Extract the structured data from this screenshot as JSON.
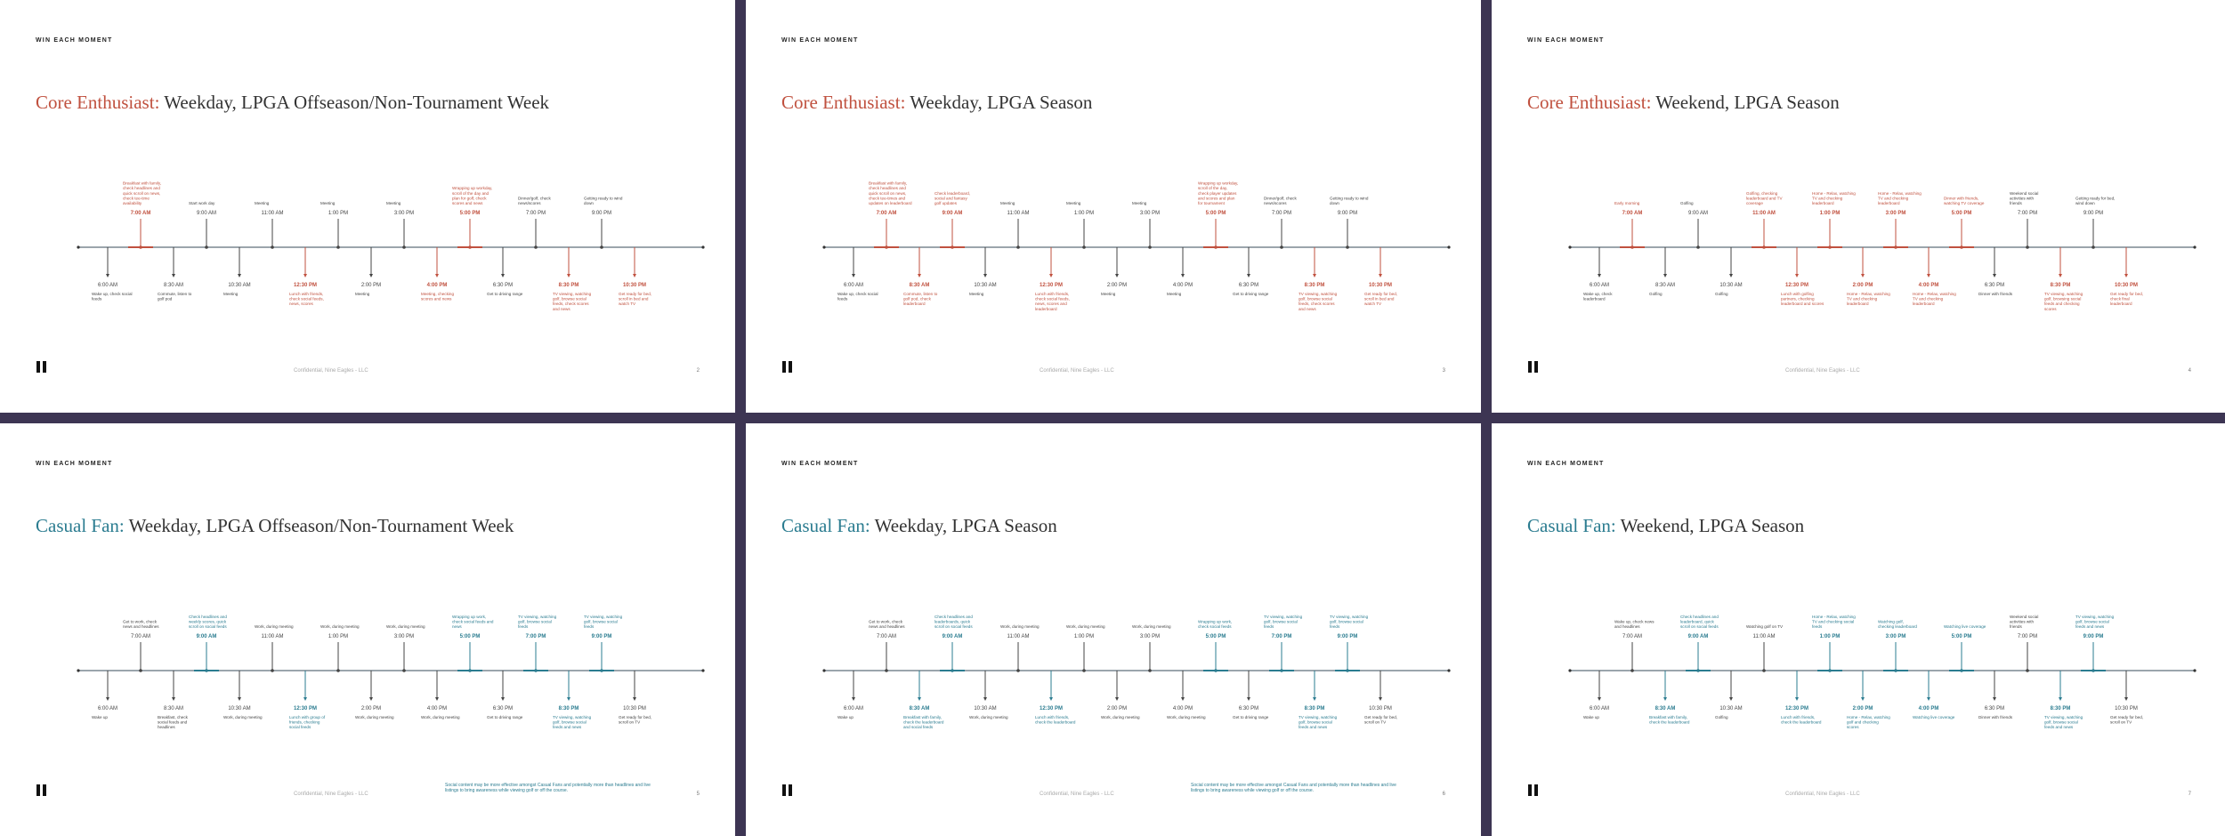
{
  "brand": "WIN EACH MOMENT",
  "footer_text": "Confidential, Nine Eagles - LLC",
  "colors": {
    "core": "#c0513f",
    "casual": "#2b7c90",
    "neutral": "#444444",
    "line": "#5f6f7a",
    "divider": "#3d3553"
  },
  "times_top": [
    "7:00 AM",
    "9:00 AM",
    "11:00 AM",
    "1:00 PM",
    "3:00 PM",
    "5:00 PM",
    "7:00 PM",
    "9:00 PM"
  ],
  "times_bottom": [
    "6:00 AM",
    "8:30 AM",
    "10:30 AM",
    "12:30 PM",
    "2:00 PM",
    "4:00 PM",
    "6:30 PM",
    "8:30 PM",
    "10:30 PM"
  ],
  "slides": [
    {
      "title_accent": "Core Enthusiast:",
      "title_rest": " Weekday, LPGA Offseason/Non-Tournament Week",
      "page": "2",
      "accent": "core",
      "top_hl": [
        0,
        5
      ],
      "bottom_hl": [
        3,
        5,
        7,
        8
      ],
      "top_notes": [
        "Breakfast with family, check headlines and quick scroll on news, check tee-time availability",
        "Start work day",
        "Meeting",
        "Meeting",
        "Meeting",
        "Wrapping up workday, scroll of the day and plan for golf, check scores and news",
        "Dinner/golf, check news/scores",
        "Getting ready to wind down"
      ],
      "bottom_notes": [
        "Wake up, check social feeds",
        "Commute, listen to golf pod",
        "Meeting",
        "Lunch with friends, check social feeds, news, scores",
        "Meeting",
        "Meeting, checking scores and news",
        "Get to driving range",
        "TV viewing, watching golf, browse social feeds, check scores and news",
        "Get ready for bed, scroll in bed and watch TV"
      ]
    },
    {
      "title_accent": "Core Enthusiast:",
      "title_rest": " Weekday, LPGA Season",
      "page": "3",
      "accent": "core",
      "top_hl": [
        0,
        1,
        5
      ],
      "bottom_hl": [
        1,
        3,
        7,
        8
      ],
      "top_notes": [
        "Breakfast with family, check headlines and quick scroll on news, check tee-times and updates on leaderboard",
        "Check leaderboard, social and fantasy golf updates",
        "Meeting",
        "Meeting",
        "Meeting",
        "Wrapping up workday, scroll of the day, check player updates and scores and plan for tournament",
        "Dinner/golf, check news/scores",
        "Getting ready to wind down"
      ],
      "bottom_notes": [
        "Wake up, check social feeds",
        "Commute, listen to golf pod, check leaderboard",
        "Meeting",
        "Lunch with friends, check social feeds, news, scores and leaderboard",
        "Meeting",
        "Meeting",
        "Get to driving range",
        "TV viewing, watching golf, browse social feeds, check scores and news",
        "Get ready for bed, scroll in bed and watch TV"
      ]
    },
    {
      "title_accent": "Core Enthusiast:",
      "title_rest": " Weekend, LPGA Season",
      "page": "4",
      "accent": "core",
      "top_hl": [
        0,
        2,
        3,
        4,
        5
      ],
      "bottom_hl": [
        3,
        4,
        5,
        7,
        8
      ],
      "top_notes": [
        "Early morning",
        "Golfing",
        "Golfing, checking leaderboard and TV coverage",
        "Home - Relax, watching TV and checking leaderboard",
        "Home - Relax, watching TV and checking leaderboard",
        "Dinner with friends, watching TV coverage",
        "Weekend social activities with friends",
        "Getting ready for bed, wind down"
      ],
      "bottom_notes": [
        "Wake up, check leaderboard",
        "Golfing",
        "Golfing",
        "Lunch with golfing partners, checking leaderboard and scores",
        "Home - Relax, watching TV and checking leaderboard",
        "Home - Relax, watching TV and checking leaderboard",
        "Dinner with friends",
        "TV viewing, watching golf, browsing social feeds and checking scores",
        "Get ready for bed, check final leaderboard"
      ]
    },
    {
      "title_accent": "Casual Fan:",
      "title_rest": " Weekday, LPGA Offseason/Non-Tournament Week",
      "page": "5",
      "accent": "casual",
      "top_hl": [
        1,
        5,
        6,
        7
      ],
      "bottom_hl": [
        3,
        7
      ],
      "top_notes": [
        "Get to work, check news and headlines",
        "Check headlines and weekly scores, quick scroll on social feeds",
        "Work, during meeting",
        "Work, during meeting",
        "Work, during meeting",
        "Wrapping up work, check social feeds and news",
        "TV viewing, watching golf, browse social feeds",
        "TV viewing, watching golf, browse social feeds"
      ],
      "bottom_notes": [
        "Wake up",
        "Breakfast, check social feeds and headlines",
        "Work, during meeting",
        "Lunch with group of friends, checking social feeds",
        "Work, during meeting",
        "Work, during meeting",
        "Get to driving range",
        "TV viewing, watching golf, browse social feeds and news",
        "Get ready for bed, scroll on TV"
      ],
      "footnote": "Social content may be more effective amongst Casual Fans and potentially more than headlines and live listings to bring awareness while viewing golf or off the course."
    },
    {
      "title_accent": "Casual Fan:",
      "title_rest": " Weekday, LPGA Season",
      "page": "6",
      "accent": "casual",
      "top_hl": [
        1,
        5,
        6,
        7
      ],
      "bottom_hl": [
        1,
        3,
        7
      ],
      "top_notes": [
        "Get to work, check news and headlines",
        "Check headlines and leaderboards, quick scroll on social feeds",
        "Work, during meeting",
        "Work, during meeting",
        "Work, during meeting",
        "Wrapping up work, check social feeds",
        "TV viewing, watching golf, browse social feeds",
        "TV viewing, watching golf, browse social feeds"
      ],
      "bottom_notes": [
        "Wake up",
        "Breakfast with family, check the leaderboard and social feeds",
        "Work, during meeting",
        "Lunch with friends, check the leaderboard",
        "Work, during meeting",
        "Work, during meeting",
        "Get to driving range",
        "TV viewing, watching golf, browse social feeds and news",
        "Get ready for bed, scroll on TV"
      ],
      "footnote": "Social content may be more effective amongst Casual Fans and potentially more than headlines and live listings to bring awareness while viewing golf or off the course."
    },
    {
      "title_accent": "Casual Fan:",
      "title_rest": " Weekend, LPGA Season",
      "page": "7",
      "accent": "casual",
      "top_hl": [
        1,
        3,
        4,
        5,
        7
      ],
      "bottom_hl": [
        1,
        3,
        4,
        5,
        7
      ],
      "top_notes": [
        "Wake up, check news and headlines",
        "Check headlines and leaderboard, quick scroll on social feeds",
        "Watching golf on TV",
        "Home - Relax, watching TV and checking social feeds",
        "Watching golf, checking leaderboard",
        "Watching live coverage",
        "Weekend social activities with friends",
        "TV viewing, watching golf, browse social feeds and news"
      ],
      "bottom_notes": [
        "Wake up",
        "Breakfast with family, check the leaderboard",
        "Golfing",
        "Lunch with friends, check the leaderboard",
        "Home - Relax, watching golf and checking scores",
        "Watching live coverage",
        "Dinner with friends",
        "TV viewing, watching golf, browse social feeds and news",
        "Get ready for bed, scroll on TV"
      ]
    }
  ]
}
